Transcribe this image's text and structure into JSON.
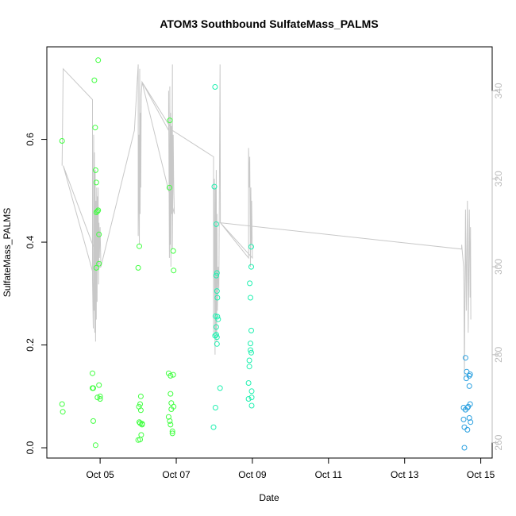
{
  "chart_data": {
    "type": "scatter",
    "title": "ATOM3 Southbound SulfateMass_PALMS",
    "xlabel": "Date",
    "ylabel": "SulfateMass_PALMS",
    "x_unit": "days of October 2016 (day-of-month)",
    "xlim": [
      3.6,
      15.3
    ],
    "ylim": [
      -0.02,
      0.78
    ],
    "x_ticks": [
      {
        "value": 5,
        "label": "Oct 05"
      },
      {
        "value": 7,
        "label": "Oct 07"
      },
      {
        "value": 9,
        "label": "Oct 09"
      },
      {
        "value": 11,
        "label": "Oct 11"
      },
      {
        "value": 13,
        "label": "Oct 13"
      },
      {
        "value": 15,
        "label": "Oct 15"
      }
    ],
    "y_ticks": [
      {
        "value": 0.0,
        "label": "0.0"
      },
      {
        "value": 0.2,
        "label": "0.2"
      },
      {
        "value": 0.4,
        "label": "0.4"
      },
      {
        "value": 0.6,
        "label": "0.6"
      }
    ],
    "y2_ticks": [
      {
        "value": 260,
        "label": "260"
      },
      {
        "value": 280,
        "label": "280"
      },
      {
        "value": 300,
        "label": "300"
      },
      {
        "value": 320,
        "label": "320"
      },
      {
        "value": 340,
        "label": "340"
      }
    ],
    "y2lim": [
      256.5,
      350
    ],
    "grid": false,
    "colors": {
      "green": "#40ff40",
      "cyan": "#20f0b0",
      "blue": "#2aa0e0",
      "secondary_line": "#c8c8c8",
      "axis": "#000000",
      "secondary_axis": "#bbbbbb"
    },
    "series": [
      {
        "color": "#40ff40",
        "points": [
          [
            4.0,
            0.597
          ],
          [
            4.0,
            0.085
          ],
          [
            4.02,
            0.07
          ],
          [
            4.8,
            0.145
          ],
          [
            4.8,
            0.116
          ],
          [
            4.82,
            0.116
          ],
          [
            4.82,
            0.052
          ],
          [
            4.85,
            0.715
          ],
          [
            4.87,
            0.623
          ],
          [
            4.88,
            0.54
          ],
          [
            4.88,
            0.005
          ],
          [
            4.9,
            0.516
          ],
          [
            4.9,
            0.458
          ],
          [
            4.9,
            0.35
          ],
          [
            4.93,
            0.46
          ],
          [
            4.93,
            0.098
          ],
          [
            4.95,
            0.754
          ],
          [
            4.95,
            0.462
          ],
          [
            4.97,
            0.415
          ],
          [
            4.97,
            0.358
          ],
          [
            4.97,
            0.122
          ],
          [
            5.0,
            0.1
          ],
          [
            5.0,
            0.095
          ],
          [
            6.0,
            0.35
          ],
          [
            6.02,
            0.08
          ],
          [
            6.03,
            0.392
          ],
          [
            6.03,
            0.05
          ],
          [
            6.05,
            0.085
          ],
          [
            6.05,
            0.048
          ],
          [
            6.07,
            0.1
          ],
          [
            6.07,
            0.073
          ],
          [
            6.05,
            0.016
          ],
          [
            6.0,
            0.015
          ],
          [
            6.08,
            0.025
          ],
          [
            6.1,
            0.047
          ],
          [
            6.1,
            0.045
          ],
          [
            6.8,
            0.145
          ],
          [
            6.8,
            0.06
          ],
          [
            6.82,
            0.506
          ],
          [
            6.83,
            0.637
          ],
          [
            6.83,
            0.052
          ],
          [
            6.85,
            0.14
          ],
          [
            6.85,
            0.105
          ],
          [
            6.85,
            0.045
          ],
          [
            6.87,
            0.087
          ],
          [
            6.87,
            0.075
          ],
          [
            6.9,
            0.032
          ],
          [
            6.9,
            0.028
          ],
          [
            6.92,
            0.383
          ],
          [
            6.92,
            0.142
          ],
          [
            6.93,
            0.08
          ],
          [
            6.93,
            0.345
          ]
        ]
      },
      {
        "color": "#20f0b0",
        "points": [
          [
            7.98,
            0.04
          ],
          [
            8.0,
            0.508
          ],
          [
            8.02,
            0.702
          ],
          [
            8.03,
            0.078
          ],
          [
            8.05,
            0.435
          ],
          [
            8.05,
            0.335
          ],
          [
            8.07,
            0.305
          ],
          [
            8.07,
            0.34
          ],
          [
            8.08,
            0.292
          ],
          [
            8.08,
            0.255
          ],
          [
            8.03,
            0.256
          ],
          [
            8.05,
            0.235
          ],
          [
            8.05,
            0.22
          ],
          [
            8.07,
            0.215
          ],
          [
            8.07,
            0.202
          ],
          [
            8.1,
            0.25
          ],
          [
            8.02,
            0.218
          ],
          [
            8.15,
            0.116
          ],
          [
            8.9,
            0.126
          ],
          [
            8.9,
            0.095
          ],
          [
            8.92,
            0.17
          ],
          [
            8.92,
            0.158
          ],
          [
            8.93,
            0.32
          ],
          [
            8.95,
            0.292
          ],
          [
            8.95,
            0.203
          ],
          [
            8.95,
            0.19
          ],
          [
            8.97,
            0.391
          ],
          [
            8.97,
            0.352
          ],
          [
            8.97,
            0.228
          ],
          [
            8.97,
            0.185
          ],
          [
            8.98,
            0.11
          ],
          [
            8.98,
            0.098
          ],
          [
            8.98,
            0.082
          ]
        ]
      },
      {
        "color": "#2aa0e0",
        "points": [
          [
            14.55,
            0.078
          ],
          [
            14.55,
            0.055
          ],
          [
            14.57,
            0.04
          ],
          [
            14.57,
            0.0
          ],
          [
            14.6,
            0.175
          ],
          [
            14.62,
            0.135
          ],
          [
            14.63,
            0.148
          ],
          [
            14.65,
            0.078
          ],
          [
            14.65,
            0.035
          ],
          [
            14.67,
            0.08
          ],
          [
            14.7,
            0.14
          ],
          [
            14.7,
            0.12
          ],
          [
            14.7,
            0.058
          ],
          [
            14.72,
            0.143
          ],
          [
            14.72,
            0.085
          ],
          [
            14.73,
            0.05
          ],
          [
            14.6,
            0.074
          ]
        ]
      }
    ],
    "secondary_line": {
      "axis": "right",
      "points": [
        [
          4.0,
          323
        ],
        [
          4.03,
          345
        ],
        [
          4.8,
          338
        ],
        [
          4.8,
          297
        ],
        [
          4.82,
          286
        ],
        [
          4.83,
          330
        ],
        [
          4.84,
          290
        ],
        [
          4.85,
          326
        ],
        [
          4.86,
          285
        ],
        [
          4.87,
          322
        ],
        [
          4.88,
          283
        ],
        [
          4.89,
          315
        ],
        [
          4.9,
          288
        ],
        [
          4.91,
          318
        ],
        [
          4.92,
          292
        ],
        [
          4.93,
          316
        ],
        [
          4.94,
          300
        ],
        [
          4.95,
          318
        ],
        [
          4.96,
          296
        ],
        [
          4.97,
          310
        ],
        [
          4.98,
          302
        ],
        [
          5.0,
          309
        ],
        [
          5.02,
          300
        ],
        [
          4.03,
          323
        ],
        [
          4.8,
          299
        ],
        [
          5.02,
          300
        ],
        [
          5.9,
          331
        ],
        [
          6.0,
          346
        ],
        [
          6.0,
          307
        ],
        [
          6.02,
          330
        ],
        [
          6.03,
          305
        ],
        [
          6.04,
          345
        ],
        [
          6.05,
          312
        ],
        [
          6.06,
          335
        ],
        [
          6.07,
          318
        ],
        [
          6.08,
          339
        ],
        [
          6.1,
          342
        ],
        [
          6.8,
          331
        ],
        [
          6.8,
          340
        ],
        [
          6.82,
          302
        ],
        [
          6.83,
          341
        ],
        [
          6.84,
          305
        ],
        [
          6.85,
          335
        ],
        [
          6.86,
          300
        ],
        [
          6.87,
          332
        ],
        [
          6.88,
          312
        ],
        [
          6.9,
          346
        ],
        [
          6.9,
          304
        ],
        [
          6.92,
          330
        ],
        [
          6.93,
          320
        ],
        [
          6.95,
          312
        ],
        [
          6.1,
          342
        ],
        [
          6.9,
          331
        ],
        [
          7.98,
          325
        ],
        [
          7.98,
          285
        ],
        [
          8.0,
          320
        ],
        [
          8.02,
          280
        ],
        [
          8.03,
          318
        ],
        [
          8.04,
          285
        ],
        [
          8.05,
          322
        ],
        [
          8.06,
          283
        ],
        [
          8.07,
          312
        ],
        [
          8.08,
          290
        ],
        [
          8.1,
          300
        ],
        [
          8.12,
          295
        ],
        [
          8.15,
          346
        ],
        [
          8.16,
          312
        ],
        [
          8.16,
          310
        ],
        [
          8.9,
          302
        ],
        [
          8.9,
          327
        ],
        [
          8.92,
          318
        ],
        [
          8.93,
          325
        ],
        [
          8.95,
          300
        ],
        [
          8.96,
          318
        ],
        [
          8.97,
          305
        ],
        [
          8.98,
          315
        ],
        [
          9.0,
          302
        ],
        [
          8.16,
          310
        ],
        [
          14.5,
          304
        ],
        [
          14.5,
          305
        ],
        [
          14.55,
          300
        ],
        [
          14.56,
          294
        ],
        [
          14.57,
          275
        ],
        [
          14.6,
          313
        ],
        [
          14.62,
          290
        ],
        [
          14.65,
          315
        ],
        [
          14.67,
          285
        ],
        [
          14.7,
          313
        ],
        [
          14.72,
          293
        ],
        [
          14.73,
          309
        ],
        [
          14.74,
          288
        ]
      ]
    }
  }
}
